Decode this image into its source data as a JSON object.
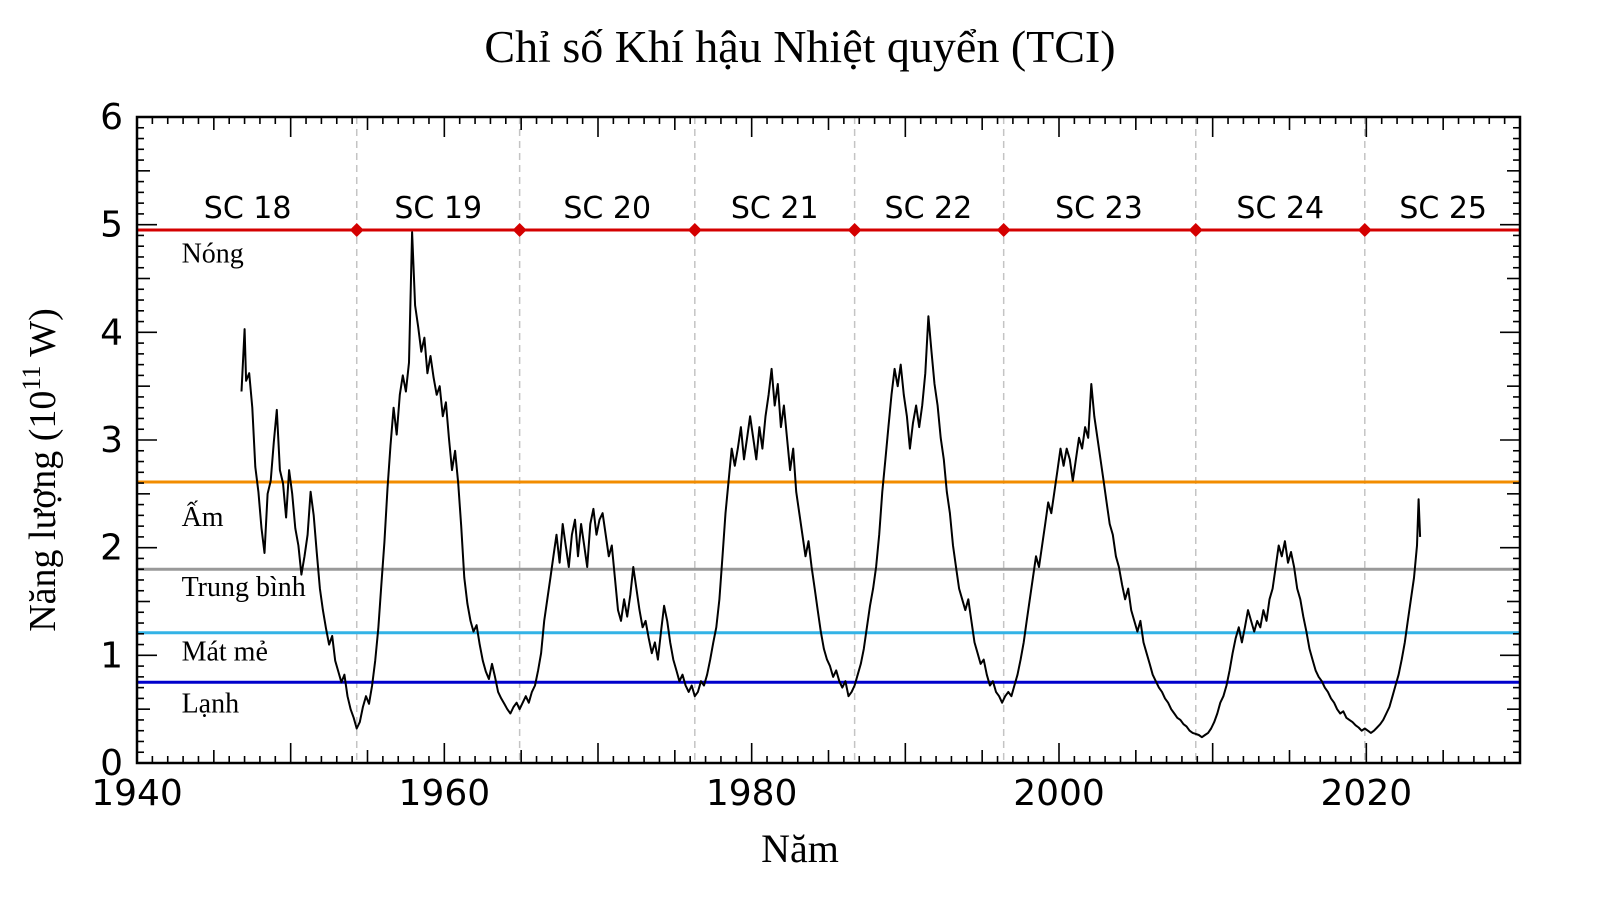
{
  "chart_data": {
    "type": "line",
    "title": "Chỉ số Khí hậu Nhiệt quyển (TCI)",
    "xlabel": "Năm",
    "ylabel": {
      "prefix": "Năng lượng (10",
      "sup": "11",
      "suffix": " W)"
    },
    "xlim": [
      1940,
      2030
    ],
    "ylim": [
      0,
      6
    ],
    "x_major_ticks": [
      1940,
      1960,
      1980,
      2000,
      2020
    ],
    "y_major_ticks": [
      0,
      1,
      2,
      3,
      4,
      5,
      6
    ],
    "series_name": "TCI",
    "series_color": "#000000",
    "ref_label_x": 1942.9,
    "reference_lines": [
      {
        "id": "nong",
        "label": "Nóng",
        "value": 4.95,
        "label_y": 4.65,
        "color": "#d40000"
      },
      {
        "id": "am",
        "label": "Ấm",
        "value": 2.61,
        "label_y": 2.2,
        "color": "#f28c00"
      },
      {
        "id": "trung-binh",
        "label": "Trung bình",
        "value": 1.8,
        "label_y": 1.55,
        "color": "#999999"
      },
      {
        "id": "mat-me",
        "label": "Mát mẻ",
        "value": 1.21,
        "label_y": 0.95,
        "color": "#33b3e6"
      },
      {
        "id": "lanh",
        "label": "Lạnh",
        "value": 0.75,
        "label_y": 0.47,
        "color": "#0000cc"
      }
    ],
    "solar_cycles": {
      "labels": [
        "SC 18",
        "SC 19",
        "SC 20",
        "SC 21",
        "SC 22",
        "SC 23",
        "SC 24",
        "SC 25"
      ],
      "label_centers": [
        1947.2,
        1959.6,
        1970.6,
        1981.5,
        1991.5,
        2002.6,
        2014.4,
        2025.0
      ],
      "boundaries": [
        1954.3,
        1964.9,
        1976.3,
        1986.7,
        1996.4,
        2008.9,
        2019.9
      ],
      "label_y": 5.06,
      "marker": "diamond",
      "marker_color": "#d40000",
      "boundary_line_style": "dashed",
      "boundary_line_color": "#c4c4c4"
    },
    "points": [
      [
        1946.8,
        3.45
      ],
      [
        1947.0,
        4.03
      ],
      [
        1947.1,
        3.55
      ],
      [
        1947.3,
        3.62
      ],
      [
        1947.5,
        3.3
      ],
      [
        1947.7,
        2.75
      ],
      [
        1947.9,
        2.52
      ],
      [
        1948.1,
        2.18
      ],
      [
        1948.3,
        1.95
      ],
      [
        1948.5,
        2.5
      ],
      [
        1948.7,
        2.62
      ],
      [
        1948.9,
        2.98
      ],
      [
        1949.1,
        3.28
      ],
      [
        1949.3,
        2.72
      ],
      [
        1949.5,
        2.6
      ],
      [
        1949.7,
        2.28
      ],
      [
        1949.9,
        2.72
      ],
      [
        1950.1,
        2.5
      ],
      [
        1950.3,
        2.18
      ],
      [
        1950.5,
        2.02
      ],
      [
        1950.7,
        1.75
      ],
      [
        1950.9,
        1.92
      ],
      [
        1951.1,
        2.12
      ],
      [
        1951.3,
        2.52
      ],
      [
        1951.5,
        2.3
      ],
      [
        1951.7,
        1.95
      ],
      [
        1951.9,
        1.62
      ],
      [
        1952.1,
        1.42
      ],
      [
        1952.3,
        1.25
      ],
      [
        1952.5,
        1.1
      ],
      [
        1952.7,
        1.18
      ],
      [
        1952.9,
        0.95
      ],
      [
        1953.1,
        0.85
      ],
      [
        1953.3,
        0.75
      ],
      [
        1953.5,
        0.82
      ],
      [
        1953.7,
        0.62
      ],
      [
        1953.9,
        0.5
      ],
      [
        1954.1,
        0.42
      ],
      [
        1954.3,
        0.32
      ],
      [
        1954.5,
        0.38
      ],
      [
        1954.7,
        0.52
      ],
      [
        1954.9,
        0.62
      ],
      [
        1955.1,
        0.55
      ],
      [
        1955.3,
        0.72
      ],
      [
        1955.5,
        0.95
      ],
      [
        1955.7,
        1.25
      ],
      [
        1955.9,
        1.65
      ],
      [
        1956.1,
        2.05
      ],
      [
        1956.3,
        2.55
      ],
      [
        1956.5,
        2.95
      ],
      [
        1956.7,
        3.3
      ],
      [
        1956.9,
        3.05
      ],
      [
        1957.1,
        3.42
      ],
      [
        1957.3,
        3.6
      ],
      [
        1957.5,
        3.45
      ],
      [
        1957.7,
        3.72
      ],
      [
        1957.9,
        4.93
      ],
      [
        1958.1,
        4.25
      ],
      [
        1958.3,
        4.05
      ],
      [
        1958.5,
        3.82
      ],
      [
        1958.7,
        3.95
      ],
      [
        1958.9,
        3.62
      ],
      [
        1959.1,
        3.78
      ],
      [
        1959.3,
        3.58
      ],
      [
        1959.5,
        3.42
      ],
      [
        1959.7,
        3.5
      ],
      [
        1959.9,
        3.22
      ],
      [
        1960.1,
        3.35
      ],
      [
        1960.3,
        3.02
      ],
      [
        1960.5,
        2.72
      ],
      [
        1960.7,
        2.9
      ],
      [
        1960.9,
        2.6
      ],
      [
        1961.1,
        2.2
      ],
      [
        1961.3,
        1.72
      ],
      [
        1961.5,
        1.48
      ],
      [
        1961.7,
        1.32
      ],
      [
        1961.9,
        1.22
      ],
      [
        1962.1,
        1.28
      ],
      [
        1962.3,
        1.1
      ],
      [
        1962.5,
        0.95
      ],
      [
        1962.7,
        0.85
      ],
      [
        1962.9,
        0.78
      ],
      [
        1963.1,
        0.92
      ],
      [
        1963.3,
        0.8
      ],
      [
        1963.5,
        0.66
      ],
      [
        1963.7,
        0.6
      ],
      [
        1963.9,
        0.55
      ],
      [
        1964.1,
        0.5
      ],
      [
        1964.3,
        0.46
      ],
      [
        1964.5,
        0.52
      ],
      [
        1964.7,
        0.56
      ],
      [
        1964.9,
        0.5
      ],
      [
        1965.1,
        0.56
      ],
      [
        1965.3,
        0.62
      ],
      [
        1965.5,
        0.56
      ],
      [
        1965.7,
        0.66
      ],
      [
        1965.9,
        0.72
      ],
      [
        1966.1,
        0.86
      ],
      [
        1966.3,
        1.02
      ],
      [
        1966.5,
        1.32
      ],
      [
        1966.7,
        1.52
      ],
      [
        1966.9,
        1.72
      ],
      [
        1967.1,
        1.92
      ],
      [
        1967.3,
        2.12
      ],
      [
        1967.5,
        1.86
      ],
      [
        1967.7,
        2.22
      ],
      [
        1967.9,
        2.02
      ],
      [
        1968.1,
        1.82
      ],
      [
        1968.3,
        2.12
      ],
      [
        1968.5,
        2.26
      ],
      [
        1968.7,
        1.92
      ],
      [
        1968.9,
        2.22
      ],
      [
        1969.1,
        2.02
      ],
      [
        1969.3,
        1.82
      ],
      [
        1969.5,
        2.22
      ],
      [
        1969.7,
        2.36
      ],
      [
        1969.9,
        2.12
      ],
      [
        1970.1,
        2.26
      ],
      [
        1970.3,
        2.32
      ],
      [
        1970.5,
        2.12
      ],
      [
        1970.7,
        1.92
      ],
      [
        1970.9,
        2.02
      ],
      [
        1971.1,
        1.72
      ],
      [
        1971.3,
        1.42
      ],
      [
        1971.5,
        1.32
      ],
      [
        1971.7,
        1.52
      ],
      [
        1971.9,
        1.36
      ],
      [
        1972.1,
        1.56
      ],
      [
        1972.3,
        1.82
      ],
      [
        1972.5,
        1.62
      ],
      [
        1972.7,
        1.42
      ],
      [
        1972.9,
        1.26
      ],
      [
        1973.1,
        1.32
      ],
      [
        1973.3,
        1.16
      ],
      [
        1973.5,
        1.02
      ],
      [
        1973.7,
        1.12
      ],
      [
        1973.9,
        0.96
      ],
      [
        1974.1,
        1.22
      ],
      [
        1974.3,
        1.46
      ],
      [
        1974.5,
        1.32
      ],
      [
        1974.7,
        1.12
      ],
      [
        1974.9,
        0.96
      ],
      [
        1975.1,
        0.86
      ],
      [
        1975.3,
        0.76
      ],
      [
        1975.5,
        0.82
      ],
      [
        1975.7,
        0.72
      ],
      [
        1975.9,
        0.66
      ],
      [
        1976.1,
        0.72
      ],
      [
        1976.3,
        0.62
      ],
      [
        1976.5,
        0.66
      ],
      [
        1976.7,
        0.76
      ],
      [
        1976.9,
        0.72
      ],
      [
        1977.1,
        0.82
      ],
      [
        1977.3,
        0.96
      ],
      [
        1977.5,
        1.12
      ],
      [
        1977.7,
        1.26
      ],
      [
        1977.9,
        1.52
      ],
      [
        1978.1,
        1.92
      ],
      [
        1978.3,
        2.32
      ],
      [
        1978.5,
        2.62
      ],
      [
        1978.7,
        2.92
      ],
      [
        1978.9,
        2.76
      ],
      [
        1979.1,
        2.92
      ],
      [
        1979.3,
        3.12
      ],
      [
        1979.5,
        2.82
      ],
      [
        1979.7,
        3.02
      ],
      [
        1979.9,
        3.22
      ],
      [
        1980.1,
        3.02
      ],
      [
        1980.3,
        2.82
      ],
      [
        1980.5,
        3.12
      ],
      [
        1980.7,
        2.92
      ],
      [
        1980.9,
        3.22
      ],
      [
        1981.1,
        3.42
      ],
      [
        1981.3,
        3.66
      ],
      [
        1981.5,
        3.32
      ],
      [
        1981.7,
        3.52
      ],
      [
        1981.9,
        3.12
      ],
      [
        1982.1,
        3.32
      ],
      [
        1982.3,
        3.02
      ],
      [
        1982.5,
        2.72
      ],
      [
        1982.7,
        2.92
      ],
      [
        1982.9,
        2.52
      ],
      [
        1983.1,
        2.32
      ],
      [
        1983.3,
        2.12
      ],
      [
        1983.5,
        1.92
      ],
      [
        1983.7,
        2.06
      ],
      [
        1983.9,
        1.82
      ],
      [
        1984.1,
        1.62
      ],
      [
        1984.3,
        1.42
      ],
      [
        1984.5,
        1.22
      ],
      [
        1984.7,
        1.06
      ],
      [
        1984.9,
        0.96
      ],
      [
        1985.1,
        0.9
      ],
      [
        1985.3,
        0.8
      ],
      [
        1985.5,
        0.86
      ],
      [
        1985.7,
        0.76
      ],
      [
        1985.9,
        0.7
      ],
      [
        1986.1,
        0.76
      ],
      [
        1986.3,
        0.62
      ],
      [
        1986.5,
        0.66
      ],
      [
        1986.7,
        0.72
      ],
      [
        1986.9,
        0.82
      ],
      [
        1987.1,
        0.92
      ],
      [
        1987.3,
        1.06
      ],
      [
        1987.5,
        1.26
      ],
      [
        1987.7,
        1.46
      ],
      [
        1987.9,
        1.62
      ],
      [
        1988.1,
        1.82
      ],
      [
        1988.3,
        2.12
      ],
      [
        1988.5,
        2.52
      ],
      [
        1988.7,
        2.82
      ],
      [
        1988.9,
        3.12
      ],
      [
        1989.1,
        3.42
      ],
      [
        1989.3,
        3.66
      ],
      [
        1989.5,
        3.5
      ],
      [
        1989.7,
        3.7
      ],
      [
        1989.9,
        3.42
      ],
      [
        1990.1,
        3.22
      ],
      [
        1990.3,
        2.92
      ],
      [
        1990.5,
        3.16
      ],
      [
        1990.7,
        3.32
      ],
      [
        1990.9,
        3.12
      ],
      [
        1991.1,
        3.32
      ],
      [
        1991.3,
        3.62
      ],
      [
        1991.5,
        4.15
      ],
      [
        1991.7,
        3.82
      ],
      [
        1991.9,
        3.52
      ],
      [
        1992.1,
        3.32
      ],
      [
        1992.3,
        3.02
      ],
      [
        1992.5,
        2.82
      ],
      [
        1992.7,
        2.52
      ],
      [
        1992.9,
        2.32
      ],
      [
        1993.1,
        2.02
      ],
      [
        1993.3,
        1.82
      ],
      [
        1993.5,
        1.62
      ],
      [
        1993.7,
        1.52
      ],
      [
        1993.9,
        1.42
      ],
      [
        1994.1,
        1.52
      ],
      [
        1994.3,
        1.32
      ],
      [
        1994.5,
        1.12
      ],
      [
        1994.7,
        1.02
      ],
      [
        1994.9,
        0.92
      ],
      [
        1995.1,
        0.96
      ],
      [
        1995.3,
        0.82
      ],
      [
        1995.5,
        0.72
      ],
      [
        1995.7,
        0.76
      ],
      [
        1995.9,
        0.66
      ],
      [
        1996.1,
        0.62
      ],
      [
        1996.3,
        0.56
      ],
      [
        1996.5,
        0.62
      ],
      [
        1996.7,
        0.66
      ],
      [
        1996.9,
        0.62
      ],
      [
        1997.1,
        0.72
      ],
      [
        1997.3,
        0.82
      ],
      [
        1997.5,
        0.96
      ],
      [
        1997.7,
        1.12
      ],
      [
        1997.9,
        1.32
      ],
      [
        1998.1,
        1.52
      ],
      [
        1998.3,
        1.72
      ],
      [
        1998.5,
        1.92
      ],
      [
        1998.7,
        1.82
      ],
      [
        1998.9,
        2.02
      ],
      [
        1999.1,
        2.22
      ],
      [
        1999.3,
        2.42
      ],
      [
        1999.5,
        2.32
      ],
      [
        1999.7,
        2.52
      ],
      [
        1999.9,
        2.72
      ],
      [
        2000.1,
        2.92
      ],
      [
        2000.3,
        2.76
      ],
      [
        2000.5,
        2.92
      ],
      [
        2000.7,
        2.82
      ],
      [
        2000.9,
        2.62
      ],
      [
        2001.1,
        2.82
      ],
      [
        2001.3,
        3.02
      ],
      [
        2001.5,
        2.92
      ],
      [
        2001.7,
        3.12
      ],
      [
        2001.9,
        3.02
      ],
      [
        2002.1,
        3.52
      ],
      [
        2002.3,
        3.22
      ],
      [
        2002.5,
        3.02
      ],
      [
        2002.7,
        2.82
      ],
      [
        2002.9,
        2.62
      ],
      [
        2003.1,
        2.42
      ],
      [
        2003.3,
        2.22
      ],
      [
        2003.5,
        2.12
      ],
      [
        2003.7,
        1.92
      ],
      [
        2003.9,
        1.82
      ],
      [
        2004.1,
        1.66
      ],
      [
        2004.3,
        1.52
      ],
      [
        2004.5,
        1.62
      ],
      [
        2004.7,
        1.42
      ],
      [
        2004.9,
        1.32
      ],
      [
        2005.1,
        1.22
      ],
      [
        2005.3,
        1.32
      ],
      [
        2005.5,
        1.12
      ],
      [
        2005.7,
        1.02
      ],
      [
        2005.9,
        0.92
      ],
      [
        2006.1,
        0.82
      ],
      [
        2006.3,
        0.76
      ],
      [
        2006.5,
        0.7
      ],
      [
        2006.7,
        0.66
      ],
      [
        2006.9,
        0.6
      ],
      [
        2007.1,
        0.56
      ],
      [
        2007.3,
        0.5
      ],
      [
        2007.5,
        0.46
      ],
      [
        2007.7,
        0.42
      ],
      [
        2007.9,
        0.4
      ],
      [
        2008.1,
        0.36
      ],
      [
        2008.3,
        0.34
      ],
      [
        2008.5,
        0.3
      ],
      [
        2008.7,
        0.28
      ],
      [
        2008.9,
        0.27
      ],
      [
        2009.1,
        0.26
      ],
      [
        2009.3,
        0.24
      ],
      [
        2009.5,
        0.26
      ],
      [
        2009.7,
        0.28
      ],
      [
        2009.9,
        0.32
      ],
      [
        2010.1,
        0.38
      ],
      [
        2010.3,
        0.46
      ],
      [
        2010.5,
        0.56
      ],
      [
        2010.7,
        0.62
      ],
      [
        2010.9,
        0.72
      ],
      [
        2011.1,
        0.86
      ],
      [
        2011.3,
        1.02
      ],
      [
        2011.5,
        1.16
      ],
      [
        2011.7,
        1.26
      ],
      [
        2011.9,
        1.12
      ],
      [
        2012.1,
        1.26
      ],
      [
        2012.3,
        1.42
      ],
      [
        2012.5,
        1.32
      ],
      [
        2012.7,
        1.22
      ],
      [
        2012.9,
        1.32
      ],
      [
        2013.1,
        1.26
      ],
      [
        2013.3,
        1.42
      ],
      [
        2013.5,
        1.32
      ],
      [
        2013.7,
        1.52
      ],
      [
        2013.9,
        1.62
      ],
      [
        2014.1,
        1.82
      ],
      [
        2014.3,
        2.02
      ],
      [
        2014.5,
        1.92
      ],
      [
        2014.7,
        2.06
      ],
      [
        2014.9,
        1.86
      ],
      [
        2015.1,
        1.96
      ],
      [
        2015.3,
        1.82
      ],
      [
        2015.5,
        1.62
      ],
      [
        2015.7,
        1.52
      ],
      [
        2015.9,
        1.36
      ],
      [
        2016.1,
        1.22
      ],
      [
        2016.3,
        1.06
      ],
      [
        2016.5,
        0.96
      ],
      [
        2016.7,
        0.86
      ],
      [
        2016.9,
        0.8
      ],
      [
        2017.1,
        0.76
      ],
      [
        2017.3,
        0.7
      ],
      [
        2017.5,
        0.66
      ],
      [
        2017.7,
        0.6
      ],
      [
        2017.9,
        0.56
      ],
      [
        2018.1,
        0.5
      ],
      [
        2018.3,
        0.46
      ],
      [
        2018.5,
        0.48
      ],
      [
        2018.7,
        0.42
      ],
      [
        2018.9,
        0.4
      ],
      [
        2019.1,
        0.38
      ],
      [
        2019.3,
        0.35
      ],
      [
        2019.5,
        0.33
      ],
      [
        2019.7,
        0.3
      ],
      [
        2019.9,
        0.32
      ],
      [
        2020.1,
        0.3
      ],
      [
        2020.3,
        0.28
      ],
      [
        2020.5,
        0.3
      ],
      [
        2020.7,
        0.33
      ],
      [
        2020.9,
        0.36
      ],
      [
        2021.1,
        0.4
      ],
      [
        2021.3,
        0.46
      ],
      [
        2021.5,
        0.52
      ],
      [
        2021.7,
        0.62
      ],
      [
        2021.9,
        0.72
      ],
      [
        2022.1,
        0.82
      ],
      [
        2022.3,
        0.96
      ],
      [
        2022.5,
        1.12
      ],
      [
        2022.7,
        1.32
      ],
      [
        2022.9,
        1.52
      ],
      [
        2023.1,
        1.72
      ],
      [
        2023.3,
        2.02
      ],
      [
        2023.4,
        2.45
      ],
      [
        2023.5,
        2.1
      ]
    ]
  }
}
